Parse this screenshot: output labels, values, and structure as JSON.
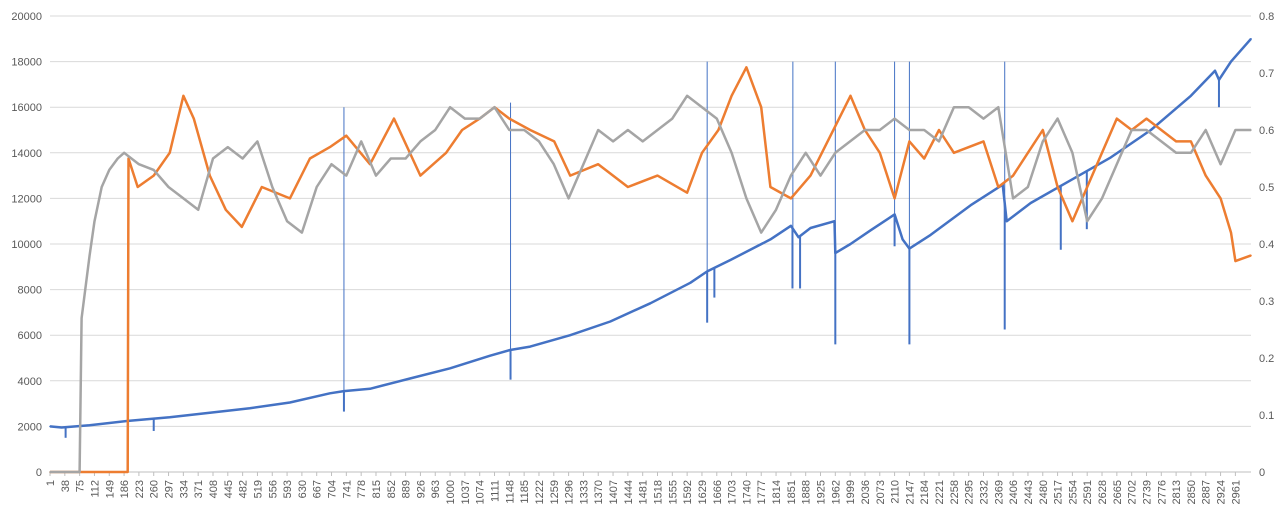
{
  "chart_data": {
    "type": "line",
    "title": "",
    "xlabel": "",
    "ylabel": "",
    "y2label": "",
    "x_range": [
      1,
      3000
    ],
    "x_tick_labels": [
      1,
      38,
      75,
      112,
      149,
      186,
      223,
      260,
      297,
      334,
      371,
      408,
      445,
      482,
      519,
      556,
      593,
      630,
      667,
      704,
      741,
      778,
      815,
      852,
      889,
      926,
      963,
      1000,
      1037,
      1074,
      1111,
      1148,
      1185,
      1222,
      1259,
      1296,
      1333,
      1370,
      1407,
      1444,
      1481,
      1518,
      1555,
      1592,
      1629,
      1666,
      1703,
      1740,
      1777,
      1814,
      1851,
      1888,
      1925,
      1962,
      1999,
      2036,
      2073,
      2110,
      2147,
      2184,
      2221,
      2258,
      2295,
      2332,
      2369,
      2406,
      2443,
      2480,
      2517,
      2554,
      2591,
      2628,
      2665,
      2702,
      2739,
      2776,
      2813,
      2850,
      2887,
      2924,
      2961
    ],
    "y_left": {
      "min": 0,
      "max": 20000,
      "ticks": [
        0,
        2000,
        4000,
        6000,
        8000,
        10000,
        12000,
        14000,
        16000,
        18000,
        20000
      ]
    },
    "y_right": {
      "min": 0,
      "max": 0.8,
      "ticks": [
        "0",
        "0.1",
        "0.2",
        "0.3",
        "0.4",
        "0.5",
        "0.6",
        "0.7",
        "0.8"
      ]
    },
    "grid": true,
    "legend": "none",
    "series": [
      {
        "axis": "left",
        "color": "#4472C4",
        "points": [
          [
            1,
            2000
          ],
          [
            30,
            1950
          ],
          [
            100,
            2050
          ],
          [
            200,
            2250
          ],
          [
            300,
            2400
          ],
          [
            400,
            2600
          ],
          [
            500,
            2800
          ],
          [
            600,
            3050
          ],
          [
            700,
            3450
          ],
          [
            735,
            3550
          ],
          [
            800,
            3650
          ],
          [
            900,
            4100
          ],
          [
            1000,
            4550
          ],
          [
            1100,
            5100
          ],
          [
            1150,
            5350
          ],
          [
            1200,
            5500
          ],
          [
            1300,
            6000
          ],
          [
            1400,
            6600
          ],
          [
            1500,
            7400
          ],
          [
            1600,
            8300
          ],
          [
            1642,
            8800
          ],
          [
            1700,
            9300
          ],
          [
            1800,
            10200
          ],
          [
            1851,
            10800
          ],
          [
            1870,
            10300
          ],
          [
            1900,
            10700
          ],
          [
            1960,
            11000
          ],
          [
            1962,
            9600
          ],
          [
            2000,
            10000
          ],
          [
            2050,
            10600
          ],
          [
            2110,
            11300
          ],
          [
            2130,
            10200
          ],
          [
            2147,
            9800
          ],
          [
            2200,
            10400
          ],
          [
            2300,
            11700
          ],
          [
            2380,
            12600
          ],
          [
            2390,
            11000
          ],
          [
            2450,
            11800
          ],
          [
            2550,
            12800
          ],
          [
            2650,
            13800
          ],
          [
            2750,
            15000
          ],
          [
            2850,
            16500
          ],
          [
            2910,
            17600
          ],
          [
            2920,
            17200
          ],
          [
            2950,
            18000
          ],
          [
            3000,
            19000
          ]
        ],
        "dips": [
          [
            40,
            1500
          ],
          [
            260,
            1800
          ],
          [
            735,
            2650
          ],
          [
            1151,
            4050
          ],
          [
            1642,
            6550
          ],
          [
            1660,
            7650
          ],
          [
            1855,
            8050
          ],
          [
            1874,
            8050
          ],
          [
            1962,
            5600
          ],
          [
            2110,
            9900
          ],
          [
            2147,
            5600
          ],
          [
            2385,
            6250
          ],
          [
            2525,
            9750
          ],
          [
            2590,
            10650
          ],
          [
            2920,
            16000
          ]
        ],
        "spikes": [
          [
            735,
            16000
          ],
          [
            1151,
            16200
          ],
          [
            1642,
            18000
          ],
          [
            1856,
            18000
          ],
          [
            1962,
            18000
          ],
          [
            2110,
            18000
          ],
          [
            2147,
            18000
          ],
          [
            2385,
            18000
          ]
        ]
      },
      {
        "axis": "right",
        "color": "#ED7D31",
        "points": [
          [
            1,
            0
          ],
          [
            195,
            0
          ],
          [
            197,
            0.55
          ],
          [
            220,
            0.5
          ],
          [
            260,
            0.52
          ],
          [
            300,
            0.56
          ],
          [
            334,
            0.66
          ],
          [
            360,
            0.62
          ],
          [
            400,
            0.52
          ],
          [
            440,
            0.46
          ],
          [
            480,
            0.43
          ],
          [
            530,
            0.5
          ],
          [
            600,
            0.48
          ],
          [
            650,
            0.55
          ],
          [
            700,
            0.57
          ],
          [
            741,
            0.59
          ],
          [
            800,
            0.54
          ],
          [
            860,
            0.62
          ],
          [
            926,
            0.52
          ],
          [
            990,
            0.56
          ],
          [
            1030,
            0.6
          ],
          [
            1074,
            0.62
          ],
          [
            1111,
            0.64
          ],
          [
            1148,
            0.62
          ],
          [
            1200,
            0.6
          ],
          [
            1260,
            0.58
          ],
          [
            1300,
            0.52
          ],
          [
            1370,
            0.54
          ],
          [
            1444,
            0.5
          ],
          [
            1518,
            0.52
          ],
          [
            1592,
            0.49
          ],
          [
            1629,
            0.56
          ],
          [
            1670,
            0.6
          ],
          [
            1703,
            0.66
          ],
          [
            1740,
            0.71
          ],
          [
            1777,
            0.64
          ],
          [
            1800,
            0.5
          ],
          [
            1851,
            0.48
          ],
          [
            1900,
            0.52
          ],
          [
            1950,
            0.59
          ],
          [
            2000,
            0.66
          ],
          [
            2036,
            0.6
          ],
          [
            2073,
            0.56
          ],
          [
            2110,
            0.48
          ],
          [
            2147,
            0.58
          ],
          [
            2184,
            0.55
          ],
          [
            2221,
            0.6
          ],
          [
            2258,
            0.56
          ],
          [
            2332,
            0.58
          ],
          [
            2369,
            0.5
          ],
          [
            2406,
            0.52
          ],
          [
            2443,
            0.56
          ],
          [
            2480,
            0.6
          ],
          [
            2517,
            0.5
          ],
          [
            2554,
            0.44
          ],
          [
            2591,
            0.5
          ],
          [
            2628,
            0.56
          ],
          [
            2665,
            0.62
          ],
          [
            2702,
            0.6
          ],
          [
            2739,
            0.62
          ],
          [
            2776,
            0.6
          ],
          [
            2813,
            0.58
          ],
          [
            2850,
            0.58
          ],
          [
            2887,
            0.52
          ],
          [
            2924,
            0.48
          ],
          [
            2950,
            0.42
          ],
          [
            2961,
            0.37
          ],
          [
            3000,
            0.38
          ]
        ]
      },
      {
        "axis": "right",
        "color": "#A5A5A5",
        "points": [
          [
            1,
            0
          ],
          [
            75,
            0
          ],
          [
            80,
            0.27
          ],
          [
            100,
            0.38
          ],
          [
            112,
            0.44
          ],
          [
            130,
            0.5
          ],
          [
            149,
            0.53
          ],
          [
            170,
            0.55
          ],
          [
            186,
            0.56
          ],
          [
            223,
            0.54
          ],
          [
            260,
            0.53
          ],
          [
            297,
            0.5
          ],
          [
            334,
            0.48
          ],
          [
            371,
            0.46
          ],
          [
            408,
            0.55
          ],
          [
            445,
            0.57
          ],
          [
            482,
            0.55
          ],
          [
            519,
            0.58
          ],
          [
            556,
            0.5
          ],
          [
            593,
            0.44
          ],
          [
            630,
            0.42
          ],
          [
            667,
            0.5
          ],
          [
            704,
            0.54
          ],
          [
            741,
            0.52
          ],
          [
            778,
            0.58
          ],
          [
            815,
            0.52
          ],
          [
            852,
            0.55
          ],
          [
            889,
            0.55
          ],
          [
            926,
            0.58
          ],
          [
            963,
            0.6
          ],
          [
            1000,
            0.64
          ],
          [
            1037,
            0.62
          ],
          [
            1074,
            0.62
          ],
          [
            1111,
            0.64
          ],
          [
            1148,
            0.6
          ],
          [
            1185,
            0.6
          ],
          [
            1222,
            0.58
          ],
          [
            1259,
            0.54
          ],
          [
            1296,
            0.48
          ],
          [
            1333,
            0.54
          ],
          [
            1370,
            0.6
          ],
          [
            1407,
            0.58
          ],
          [
            1444,
            0.6
          ],
          [
            1481,
            0.58
          ],
          [
            1518,
            0.6
          ],
          [
            1555,
            0.62
          ],
          [
            1592,
            0.66
          ],
          [
            1629,
            0.64
          ],
          [
            1666,
            0.62
          ],
          [
            1703,
            0.56
          ],
          [
            1740,
            0.48
          ],
          [
            1777,
            0.42
          ],
          [
            1814,
            0.46
          ],
          [
            1851,
            0.52
          ],
          [
            1888,
            0.56
          ],
          [
            1925,
            0.52
          ],
          [
            1962,
            0.56
          ],
          [
            1999,
            0.58
          ],
          [
            2036,
            0.6
          ],
          [
            2073,
            0.6
          ],
          [
            2110,
            0.62
          ],
          [
            2147,
            0.6
          ],
          [
            2184,
            0.6
          ],
          [
            2221,
            0.58
          ],
          [
            2258,
            0.64
          ],
          [
            2295,
            0.64
          ],
          [
            2332,
            0.62
          ],
          [
            2369,
            0.64
          ],
          [
            2406,
            0.48
          ],
          [
            2443,
            0.5
          ],
          [
            2480,
            0.58
          ],
          [
            2517,
            0.62
          ],
          [
            2554,
            0.56
          ],
          [
            2591,
            0.44
          ],
          [
            2628,
            0.48
          ],
          [
            2665,
            0.54
          ],
          [
            2702,
            0.6
          ],
          [
            2739,
            0.6
          ],
          [
            2776,
            0.58
          ],
          [
            2813,
            0.56
          ],
          [
            2850,
            0.56
          ],
          [
            2887,
            0.6
          ],
          [
            2924,
            0.54
          ],
          [
            2961,
            0.6
          ],
          [
            3000,
            0.6
          ]
        ]
      }
    ]
  }
}
